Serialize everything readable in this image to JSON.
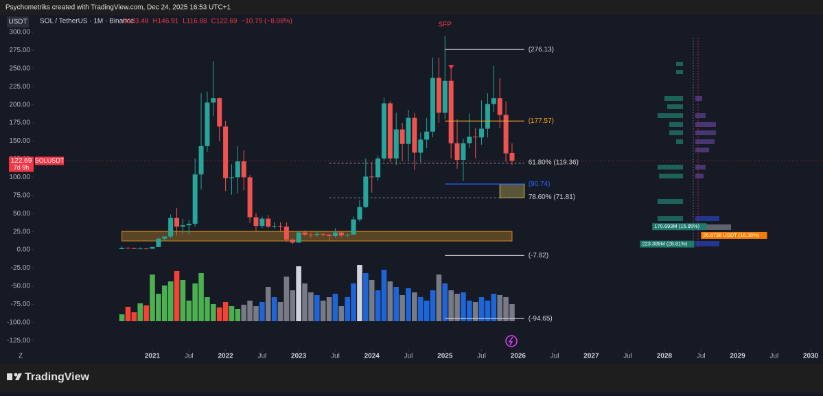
{
  "header": {
    "title": "Psychometriks created with TradingView.com, Dec 24, 2025 16:53 UTC+1"
  },
  "footer": {
    "brand": "TradingView"
  },
  "chart_data": {
    "type": "candlestick",
    "currency_button": "USDT",
    "symbol": "SOL / TetherUS · 1M · Binance",
    "legend_values": [
      "O133.48",
      "H146.91",
      "L116.88",
      "C122.69",
      "−10.79 (−8.08%)"
    ],
    "price_tag": {
      "symbol": "SOLUSDT",
      "countdown": "7d 9h",
      "color": "#f23645"
    },
    "up_color": "#26a69a",
    "down_color": "#ef5350",
    "x": [
      "2020-08",
      "2020-09",
      "2020-10",
      "2020-11",
      "2020-12",
      "2021-01",
      "2021-02",
      "2021-03",
      "2021-04",
      "2021-05",
      "2021-06",
      "2021-07",
      "2021-08",
      "2021-09",
      "2021-10",
      "2021-11",
      "2021-12",
      "2022-01",
      "2022-02",
      "2022-03",
      "2022-04",
      "2022-05",
      "2022-06",
      "2022-07",
      "2022-08",
      "2022-09",
      "2022-10",
      "2022-11",
      "2022-12",
      "2023-01",
      "2023-02",
      "2023-03",
      "2023-04",
      "2023-05",
      "2023-06",
      "2023-07",
      "2023-08",
      "2023-09",
      "2023-10",
      "2023-11",
      "2023-12",
      "2024-01",
      "2024-02",
      "2024-03",
      "2024-04",
      "2024-05",
      "2024-06",
      "2024-07",
      "2024-08",
      "2024-09",
      "2024-10",
      "2024-11",
      "2024-12",
      "2025-01",
      "2025-02",
      "2025-03",
      "2025-04",
      "2025-05",
      "2025-06",
      "2025-07",
      "2025-08",
      "2025-09",
      "2025-10",
      "2025-11",
      "2025-12"
    ],
    "open": [
      1.2,
      2.9,
      2.8,
      1.6,
      1.85,
      1.5,
      4.0,
      15.5,
      18.5,
      44,
      32,
      34,
      36,
      104,
      143,
      203,
      209,
      170,
      99,
      100,
      122,
      100,
      45,
      33,
      43,
      32,
      33,
      32,
      14,
      10,
      24,
      21,
      20.8,
      22,
      21,
      19,
      24,
      20,
      21,
      42,
      59,
      101,
      100,
      126,
      202,
      126,
      166,
      146,
      182,
      134,
      152,
      163,
      237,
      189,
      233,
      147,
      124,
      147,
      156,
      155,
      167,
      201,
      209,
      186,
      133.48
    ],
    "high": [
      4.9,
      4.0,
      2.9,
      3.6,
      2.3,
      4.2,
      17,
      18.5,
      49,
      58,
      43,
      41,
      126,
      216,
      218,
      260,
      210,
      178,
      118,
      143,
      137,
      103,
      51,
      46,
      48,
      38,
      38,
      38,
      16,
      26,
      27,
      24,
      26,
      23,
      22,
      30,
      26,
      22,
      46,
      69,
      126,
      121,
      130,
      210,
      205,
      189,
      175,
      193,
      189,
      162,
      182,
      265,
      265,
      295,
      253,
      180,
      153,
      188,
      168,
      206,
      216,
      254,
      237,
      205,
      146.91
    ],
    "low": [
      0.95,
      1.9,
      1.2,
      1.6,
      1.2,
      1.4,
      3.8,
      12,
      16,
      20,
      22,
      21,
      32,
      83,
      135,
      184,
      150,
      81,
      76,
      78,
      82,
      37,
      26,
      30,
      30,
      29,
      26,
      11,
      8,
      9.9,
      19,
      16,
      18,
      18,
      13,
      17,
      18,
      17,
      21,
      39,
      58,
      79,
      95,
      123,
      121,
      117,
      122,
      122,
      110,
      121,
      140,
      155,
      175,
      180,
      126,
      112,
      95,
      140,
      126,
      145,
      155,
      190,
      168,
      121,
      116.88
    ],
    "close": [
      2.9,
      2.8,
      1.6,
      1.85,
      1.5,
      4.0,
      15.5,
      18.5,
      44,
      32,
      34,
      36,
      104,
      143,
      203,
      209,
      170,
      99,
      100,
      122,
      100,
      45,
      33,
      43,
      32,
      33,
      32,
      14,
      10,
      24,
      21,
      20.8,
      22,
      21,
      19,
      24,
      20,
      21,
      42,
      59,
      101,
      100,
      126,
      202,
      126,
      166,
      146,
      182,
      134,
      152,
      163,
      237,
      189,
      233,
      147,
      124,
      147,
      156,
      155,
      167,
      201,
      209,
      186,
      133,
      122.69
    ],
    "volume": {
      "values": [
        10,
        21,
        13,
        26,
        23,
        68,
        40,
        52,
        58,
        73,
        60,
        30,
        55,
        70,
        35,
        25,
        20,
        28,
        22,
        18,
        24,
        30,
        22,
        28,
        50,
        35,
        28,
        65,
        45,
        80,
        55,
        42,
        38,
        30,
        35,
        40,
        22,
        35,
        55,
        82,
        70,
        60,
        45,
        75,
        58,
        50,
        38,
        48,
        42,
        35,
        30,
        45,
        68,
        55,
        45,
        40,
        42,
        30,
        28,
        35,
        30,
        40,
        38,
        35,
        25
      ],
      "colors": [
        "#4caf50",
        "#f44336",
        "#f44336",
        "#4caf50",
        "#f44336",
        "#4caf50",
        "#4caf50",
        "#4caf50",
        "#4caf50",
        "#f44336",
        "#4caf50",
        "#4caf50",
        "#4caf50",
        "#4caf50",
        "#4caf50",
        "#4caf50",
        "#f44336",
        "#f44336",
        "#4caf50",
        "#4caf50",
        "#787b86",
        "#787b86",
        "#787b86",
        "#1e66d8",
        "#787b86",
        "#1e66d8",
        "#787b86",
        "#787b86",
        "#787b86",
        "#d1d4dc",
        "#787b86",
        "#787b86",
        "#1e66d8",
        "#787b86",
        "#787b86",
        "#1e66d8",
        "#787b86",
        "#1e66d8",
        "#1e66d8",
        "#d1d4dc",
        "#1e66d8",
        "#787b86",
        "#1e66d8",
        "#1e66d8",
        "#787b86",
        "#1e66d8",
        "#787b86",
        "#1e66d8",
        "#787b86",
        "#1e66d8",
        "#1e66d8",
        "#1e66d8",
        "#787b86",
        "#1e66d8",
        "#787b86",
        "#787b86",
        "#1e66d8",
        "#1e66d8",
        "#787b86",
        "#1e66d8",
        "#1e66d8",
        "#1e66d8",
        "#787b86",
        "#787b86",
        "#787b86"
      ]
    },
    "xlim": [
      "2018-12",
      "2030-02"
    ],
    "xticks": [
      {
        "value": "2021-01",
        "label": "2021"
      },
      {
        "value": "2021-07",
        "label": "Jul"
      },
      {
        "value": "2022-01",
        "label": "2022"
      },
      {
        "value": "2022-07",
        "label": "Jul"
      },
      {
        "value": "2023-01",
        "label": "2023"
      },
      {
        "value": "2023-07",
        "label": "Jul"
      },
      {
        "value": "2024-01",
        "label": "2024"
      },
      {
        "value": "2024-07",
        "label": "Jul"
      },
      {
        "value": "2025-01",
        "label": "2025"
      },
      {
        "value": "2025-07",
        "label": "Jul"
      },
      {
        "value": "2026-01",
        "label": "2026"
      },
      {
        "value": "2026-07",
        "label": "Jul"
      },
      {
        "value": "2027-01",
        "label": "2027"
      },
      {
        "value": "2027-07",
        "label": "Jul"
      },
      {
        "value": "2028-01",
        "label": "2028"
      },
      {
        "value": "2028-07",
        "label": "Jul"
      },
      {
        "value": "2029-01",
        "label": "2029"
      },
      {
        "value": "2029-07",
        "label": "Jul"
      },
      {
        "value": "2030-01",
        "label": "2030"
      }
    ],
    "ylim": [
      -138,
      316
    ],
    "yticks": [
      {
        "value": 300,
        "label": "300.00"
      },
      {
        "value": 275,
        "label": "275.00"
      },
      {
        "value": 250,
        "label": "250.00"
      },
      {
        "value": 225,
        "label": "225.00"
      },
      {
        "value": 200,
        "label": "200.00"
      },
      {
        "value": 175,
        "label": "175.00"
      },
      {
        "value": 150,
        "label": "150.00"
      },
      {
        "value": 125,
        "label": "125.00"
      },
      {
        "value": 100,
        "label": "100.00"
      },
      {
        "value": 75,
        "label": "75.00"
      },
      {
        "value": 50,
        "label": "50.00"
      },
      {
        "value": 25,
        "label": "25.00"
      },
      {
        "value": 0,
        "label": "0.00"
      },
      {
        "value": -25,
        "label": "-25.00"
      },
      {
        "value": -50,
        "label": "-50.00"
      },
      {
        "value": -75,
        "label": "-75.00"
      },
      {
        "value": -100,
        "label": "-100.00"
      },
      {
        "value": -125,
        "label": "-125.00"
      }
    ],
    "axis_corner": "Z",
    "levels": [
      {
        "value": 276.13,
        "label": "(276.13)",
        "color": "#d1d4dc",
        "x": [
          "2025-01",
          "2026-02"
        ],
        "dashed": false
      },
      {
        "value": 177.57,
        "label": "(177.57)",
        "color": "#f5a623",
        "x": [
          "2025-01",
          "2026-02"
        ],
        "dashed": false
      },
      {
        "value": 119.36,
        "label": "61.80% (119.36)",
        "color": "#787b86",
        "x": [
          "2023-06",
          "2026-02"
        ],
        "dashed": true
      },
      {
        "value": 90.74,
        "label": "(90.74)",
        "color": "#2962ff",
        "x": [
          "2025-01",
          "2026-02"
        ],
        "dashed": false
      },
      {
        "value": 71.81,
        "label": "78.60% (71.81)",
        "color": "#787b86",
        "x": [
          "2023-06",
          "2026-02"
        ],
        "dashed": true
      },
      {
        "value": -7.82,
        "label": "(-7.82)",
        "color": "#d1d4dc",
        "x": [
          "2025-01",
          "2026-02"
        ],
        "dashed": false
      },
      {
        "value": -94.65,
        "label": "(-94.65)",
        "color": "#d1d4dc",
        "x": [
          "2025-01",
          "2026-02"
        ],
        "dashed": false
      }
    ],
    "zones": [
      {
        "y": [
          71.81,
          90.74
        ],
        "x": [
          "2025-10",
          "2026-02"
        ],
        "color": "#f5e663"
      },
      {
        "y": [
          12.3,
          25.5
        ],
        "x": [
          "2020-08",
          "2025-12"
        ],
        "color": "#f5a623"
      }
    ],
    "signal": {
      "label": "SFP",
      "x": "2025-01",
      "color": "#f23645"
    },
    "profile_labels": [
      {
        "label": "170.693M (15.95%)",
        "value": 32,
        "color": "#1f7a6d",
        "x": "2027-11"
      },
      {
        "label": "223.389M (28.81%)",
        "value": 8,
        "color": "#1f7a6d",
        "x": "2027-09"
      },
      {
        "label": "26.6738 USDT (16.38%)",
        "value": 20,
        "color": "#f57c00",
        "x": "2028-07"
      }
    ]
  }
}
